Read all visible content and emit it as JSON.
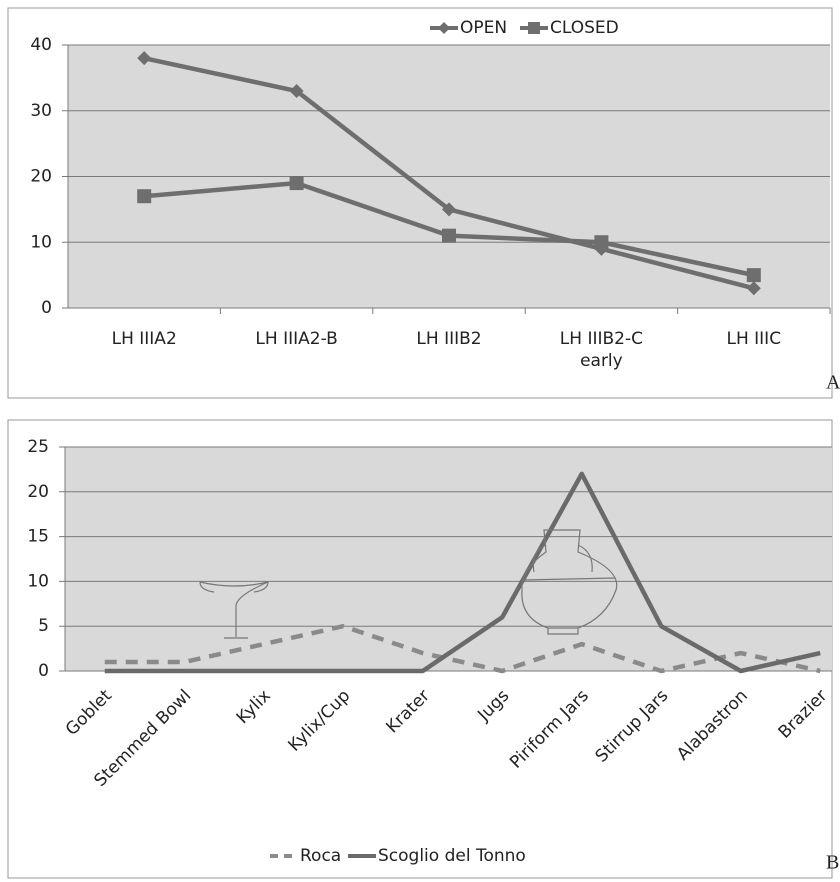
{
  "chart_data": [
    {
      "type": "line",
      "panel_label": "A",
      "categories": [
        "LH IIIA2",
        "LH IIIA2-B",
        "LH IIIB2",
        "LH IIIB2-C early",
        "LH IIIC"
      ],
      "series": [
        {
          "name": "OPEN",
          "color": "#6e6e6e",
          "marker": "diamond",
          "values": [
            38,
            33,
            15,
            9,
            3
          ]
        },
        {
          "name": "CLOSED",
          "color": "#6e6e6e",
          "marker": "square",
          "values": [
            17,
            19,
            11,
            10,
            5
          ]
        }
      ],
      "ylim": [
        0,
        40
      ],
      "yticks": [
        0,
        10,
        20,
        30,
        40
      ],
      "grid": true,
      "legend": "top"
    },
    {
      "type": "line",
      "panel_label": "B",
      "categories": [
        "Goblet",
        "Stemmed Bowl",
        "Kylix",
        "Kylix/Cup",
        "Krater",
        "Jugs",
        "Piriform Jars",
        "Stirrup Jars",
        "Alabastron",
        "Brazier"
      ],
      "series": [
        {
          "name": "Roca",
          "color": "#8a8a8a",
          "style": "dashed",
          "values": [
            1,
            1,
            3,
            5,
            2,
            0,
            3,
            0,
            2,
            0
          ]
        },
        {
          "name": "Scoglio del Tonno",
          "color": "#6a6a6a",
          "style": "solid",
          "values": [
            0,
            0,
            0,
            0,
            0,
            6,
            22,
            5,
            0,
            2
          ]
        }
      ],
      "ylim": [
        0,
        25
      ],
      "yticks": [
        0,
        5,
        10,
        15,
        20,
        25
      ],
      "grid": true,
      "legend": "bottom"
    }
  ]
}
